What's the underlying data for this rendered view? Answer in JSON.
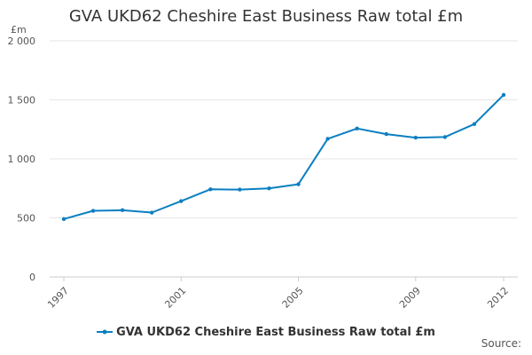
{
  "chart_data": {
    "type": "line",
    "title": "GVA UKD62 Cheshire East Business Raw total £m",
    "y_unit": "£m",
    "xlabel": "",
    "ylabel": "",
    "x_ticks": [
      "1997",
      "2001",
      "2005",
      "2009",
      "2012"
    ],
    "y_ticks": [
      "0",
      "500",
      "1 000",
      "1 500",
      "2 000"
    ],
    "ylim": [
      0,
      2000
    ],
    "xlim": [
      1997,
      2012
    ],
    "grid": true,
    "legend_position": "bottom",
    "series": [
      {
        "name": "GVA UKD62 Cheshire East Business Raw total £m",
        "color": "#0b7fc1",
        "x": [
          1997,
          1998,
          1999,
          2000,
          2001,
          2002,
          2003,
          2004,
          2005,
          2006,
          2007,
          2008,
          2009,
          2010,
          2011,
          2012
        ],
        "values": [
          490,
          560,
          565,
          545,
          642,
          742,
          740,
          750,
          785,
          1170,
          1257,
          1210,
          1180,
          1185,
          1295,
          1542
        ]
      }
    ],
    "source_label": "Source:"
  }
}
